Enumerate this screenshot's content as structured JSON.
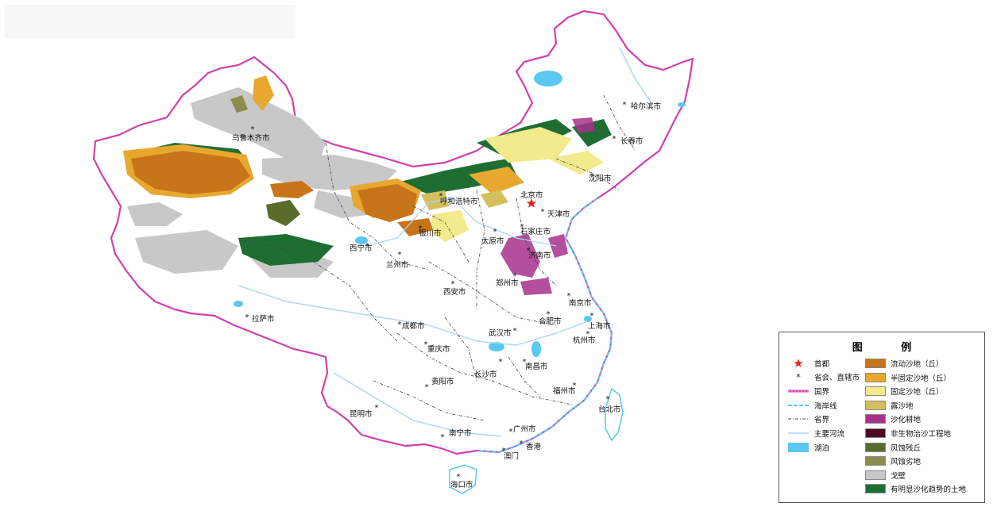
{
  "legend": {
    "title_left": "图",
    "title_right": "例",
    "symbols": [
      {
        "key": "capital",
        "label": "首都"
      },
      {
        "key": "province_capital",
        "label": "省会、直辖市"
      },
      {
        "key": "national_border",
        "label": "国界"
      },
      {
        "key": "coastline",
        "label": "海岸线"
      },
      {
        "key": "provincial_border",
        "label": "省界"
      },
      {
        "key": "river",
        "label": "主要河流"
      },
      {
        "key": "lake",
        "label": "湖泊"
      }
    ],
    "classes": [
      {
        "label": "流动沙地（丘）",
        "color": "#c8741a"
      },
      {
        "label": "半固定沙地（丘）",
        "color": "#e8a830"
      },
      {
        "label": "固定沙地（丘）",
        "color": "#f2ea8c"
      },
      {
        "label": "露沙地",
        "color": "#d4bf5c"
      },
      {
        "label": "沙化耕地",
        "color": "#a8318c"
      },
      {
        "label": "非生物治沙工程地",
        "color": "#4a0a24"
      },
      {
        "label": "风蚀残丘",
        "color": "#5a6b2a"
      },
      {
        "label": "风蚀劣地",
        "color": "#8c8c4e"
      },
      {
        "label": "戈壁",
        "color": "#c8c8c8"
      },
      {
        "label": "有明显沙化趋势的土地",
        "color": "#1e6e34"
      }
    ]
  },
  "cities": [
    {
      "name": "乌鲁木齐市"
    },
    {
      "name": "哈尔滨市"
    },
    {
      "name": "长春市"
    },
    {
      "name": "沈阳市"
    },
    {
      "name": "北京市"
    },
    {
      "name": "天津市"
    },
    {
      "name": "呼和浩特市"
    },
    {
      "name": "石家庄市"
    },
    {
      "name": "太原市"
    },
    {
      "name": "银川市"
    },
    {
      "name": "济南市"
    },
    {
      "name": "西宁市"
    },
    {
      "name": "兰州市"
    },
    {
      "name": "郑州市"
    },
    {
      "name": "西安市"
    },
    {
      "name": "南京市"
    },
    {
      "name": "合肥市"
    },
    {
      "name": "上海市"
    },
    {
      "name": "拉萨市"
    },
    {
      "name": "成都市"
    },
    {
      "name": "武汉市"
    },
    {
      "name": "杭州市"
    },
    {
      "name": "重庆市"
    },
    {
      "name": "南昌市"
    },
    {
      "name": "长沙市"
    },
    {
      "name": "贵阳市"
    },
    {
      "name": "福州市"
    },
    {
      "name": "台北市"
    },
    {
      "name": "昆明市"
    },
    {
      "name": "南宁市"
    },
    {
      "name": "广州市"
    },
    {
      "name": "香港"
    },
    {
      "name": "澳门"
    },
    {
      "name": "海口市"
    }
  ],
  "colors": {
    "border": "#d040b0",
    "coast": "#5ac8f0",
    "lake": "#5ac8f0",
    "river": "#a8d8ec",
    "province": "#444444",
    "capital": "#e02020"
  }
}
